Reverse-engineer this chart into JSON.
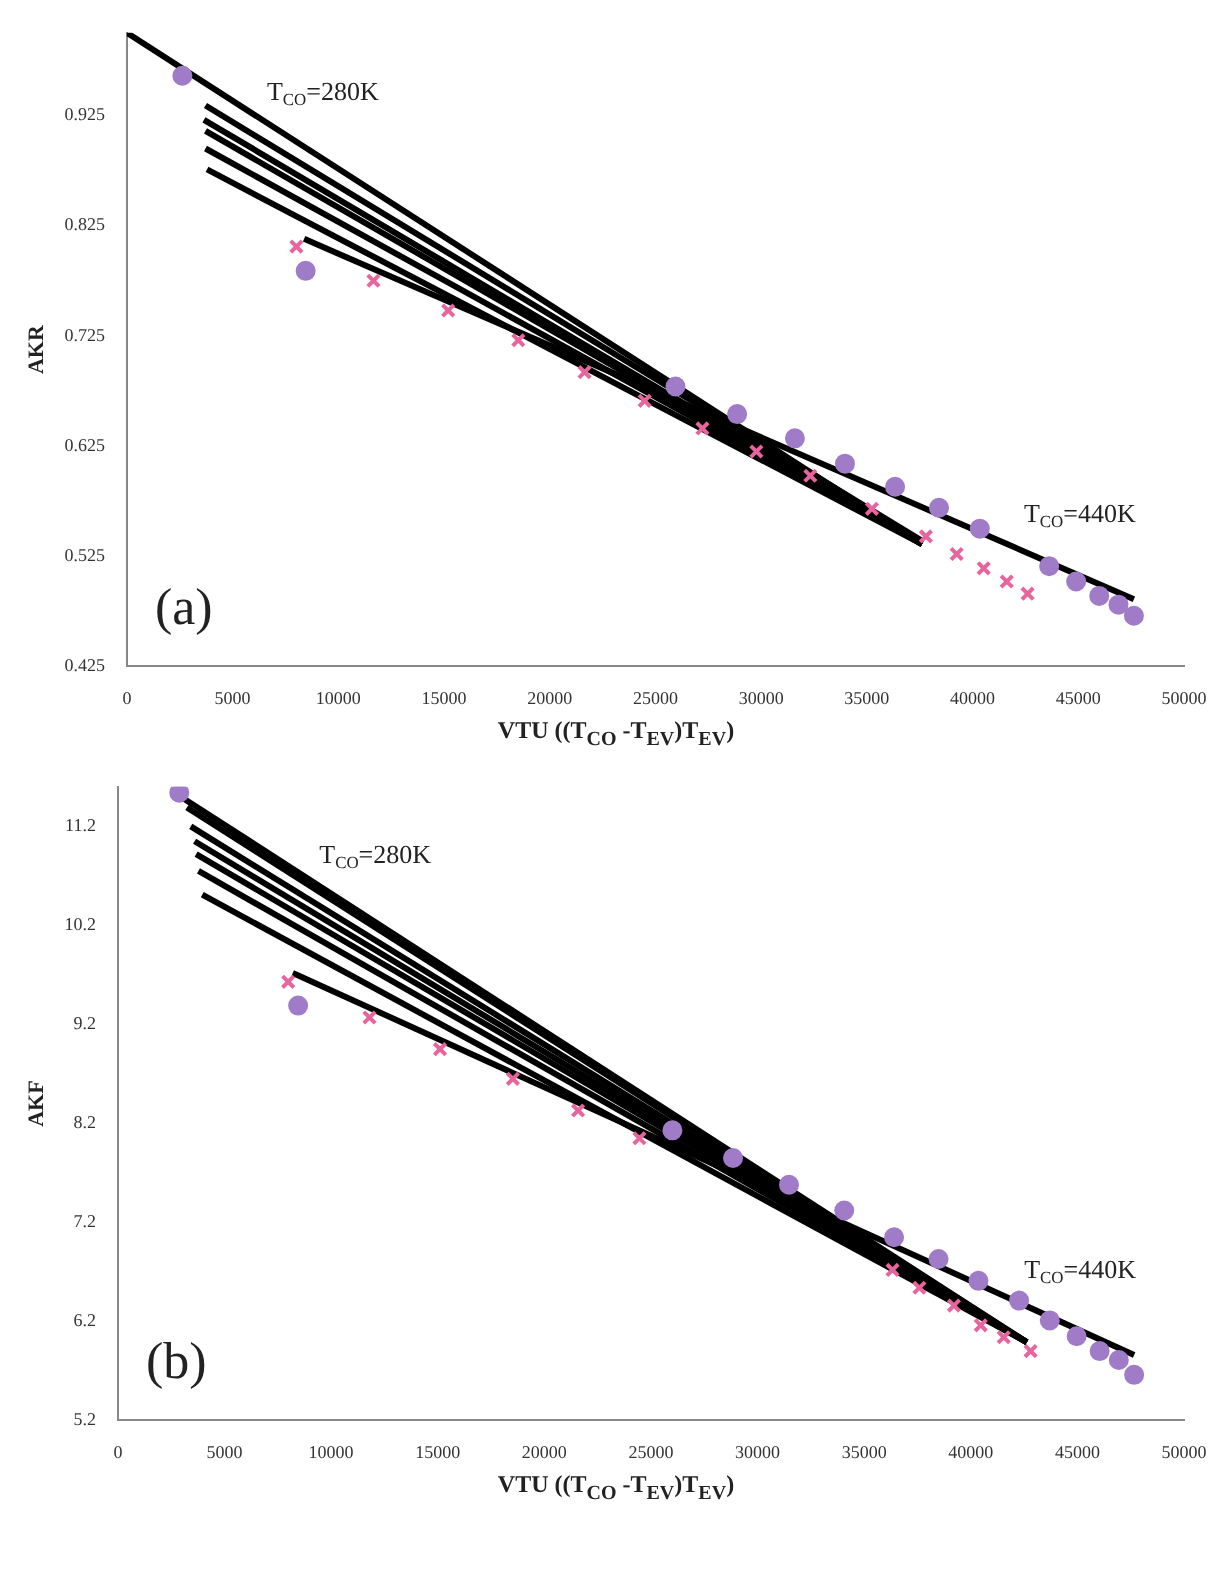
{
  "chart_data": [
    {
      "type": "scatter",
      "xlabel": "VTU ((T$_{CO}$ -T$_{EV}$)T$_{EV}$)",
      "ylabel": "AKR",
      "xlim": [
        0,
        50000
      ],
      "xticks": [
        0,
        5000,
        10000,
        15000,
        20000,
        25000,
        30000,
        35000,
        40000,
        45000,
        50000
      ],
      "ylim": [
        0.425,
        1.0
      ],
      "yticks": [
        0.425,
        0.525,
        0.625,
        0.725,
        0.825,
        0.925
      ],
      "grid": false,
      "legend": false,
      "annotations": [
        "T$_{CO}$=280K",
        "T$_{CO}$=440K",
        "(a)"
      ],
      "series": [
        {
          "type": "scatter",
          "marker": "circle",
          "color": "#a07cc8",
          "x": [
            2624,
            8455,
            25948,
            28863,
            31596,
            33965,
            36334,
            38411,
            40343,
            43622,
            44898,
            45991,
            46902,
            47631
          ],
          "values": [
            0.961,
            0.784,
            0.679,
            0.654,
            0.632,
            0.609,
            0.588,
            0.569,
            0.55,
            0.516,
            0.502,
            0.489,
            0.481,
            0.471
          ]
        },
        {
          "type": "scatter",
          "marker": "cross",
          "color": "#e8649c",
          "x": [
            8017,
            11662,
            15197,
            18513,
            21647,
            24490,
            27223,
            29774,
            32325,
            35241,
            37792,
            39249,
            40525,
            41618,
            42602
          ],
          "values": [
            0.806,
            0.775,
            0.748,
            0.721,
            0.692,
            0.666,
            0.641,
            0.62,
            0.598,
            0.568,
            0.543,
            0.527,
            0.514,
            0.502,
            0.491
          ]
        },
        {
          "type": "line",
          "marker": "none",
          "color": "#000000",
          "x": [
            0,
            37609
          ],
          "values": [
            1.0,
            0.536
          ]
        },
        {
          "type": "line",
          "marker": "none",
          "color": "#000000",
          "x": [
            3717,
            37609
          ],
          "values": [
            0.934,
            0.539
          ]
        },
        {
          "type": "line",
          "marker": "none",
          "color": "#000000",
          "x": [
            3644,
            37609
          ],
          "values": [
            0.921,
            0.536
          ]
        },
        {
          "type": "line",
          "marker": "none",
          "color": "#000000",
          "x": [
            3717,
            37609
          ],
          "values": [
            0.911,
            0.536
          ]
        },
        {
          "type": "line",
          "marker": "none",
          "color": "#000000",
          "x": [
            3717,
            37609
          ],
          "values": [
            0.895,
            0.536
          ]
        },
        {
          "type": "line",
          "marker": "none",
          "color": "#000000",
          "x": [
            3790,
            37609
          ],
          "values": [
            0.876,
            0.536
          ]
        },
        {
          "type": "line",
          "marker": "none",
          "color": "#000000",
          "x": [
            8382,
            47631
          ],
          "values": [
            0.813,
            0.486
          ]
        }
      ]
    },
    {
      "type": "scatter",
      "xlabel": "VTU ((T$_{CO}$ -T$_{EV}$)T$_{EV}$)",
      "ylabel": "AKF",
      "xlim": [
        0,
        50000
      ],
      "xticks": [
        0,
        5000,
        10000,
        15000,
        20000,
        25000,
        30000,
        35000,
        40000,
        45000,
        50000
      ],
      "ylim": [
        5.2,
        11.6
      ],
      "yticks": [
        5.2,
        6.2,
        7.2,
        8.2,
        9.2,
        10.2,
        11.2
      ],
      "grid": false,
      "legend": false,
      "annotations": [
        "T$_{CO}$=280K",
        "T$_{CO}$=440K",
        "(b)"
      ],
      "series": [
        {
          "type": "scatter",
          "marker": "circle",
          "color": "#a07cc8",
          "x": [
            2878,
            8453,
            26007,
            28849,
            31475,
            34065,
            36403,
            38489,
            40360,
            42266,
            43705,
            44964,
            46043,
            46942,
            47662
          ],
          "values": [
            11.54,
            9.39,
            8.13,
            7.85,
            7.58,
            7.32,
            7.05,
            6.83,
            6.61,
            6.41,
            6.21,
            6.05,
            5.9,
            5.81,
            5.66
          ]
        },
        {
          "type": "scatter",
          "marker": "cross",
          "color": "#e8649c",
          "x": [
            7986,
            11799,
            15108,
            18525,
            21583,
            24460,
            36331,
            37590,
            39209,
            40468,
            41547,
            42806
          ],
          "values": [
            9.63,
            9.27,
            8.95,
            8.65,
            8.33,
            8.05,
            6.72,
            6.54,
            6.36,
            6.16,
            6.04,
            5.9
          ]
        },
        {
          "type": "line",
          "marker": "none",
          "color": "#000000",
          "x": [
            2878,
            42626
          ],
          "values": [
            11.51,
            5.99
          ]
        },
        {
          "type": "line",
          "marker": "none",
          "color": "#000000",
          "x": [
            3237,
            42626
          ],
          "values": [
            11.39,
            5.99
          ]
        },
        {
          "type": "line",
          "marker": "none",
          "color": "#000000",
          "x": [
            3417,
            42626
          ],
          "values": [
            11.2,
            5.99
          ]
        },
        {
          "type": "line",
          "marker": "none",
          "color": "#000000",
          "x": [
            3597,
            42626
          ],
          "values": [
            11.05,
            5.99
          ]
        },
        {
          "type": "line",
          "marker": "none",
          "color": "#000000",
          "x": [
            3669,
            42626
          ],
          "values": [
            10.92,
            5.99
          ]
        },
        {
          "type": "line",
          "marker": "none",
          "color": "#000000",
          "x": [
            3777,
            42626
          ],
          "values": [
            10.75,
            5.99
          ]
        },
        {
          "type": "line",
          "marker": "none",
          "color": "#000000",
          "x": [
            3957,
            42626
          ],
          "values": [
            10.51,
            5.99
          ]
        },
        {
          "type": "line",
          "marker": "none",
          "color": "#000000",
          "x": [
            8201,
            47662
          ],
          "values": [
            9.72,
            5.86
          ]
        }
      ]
    }
  ]
}
